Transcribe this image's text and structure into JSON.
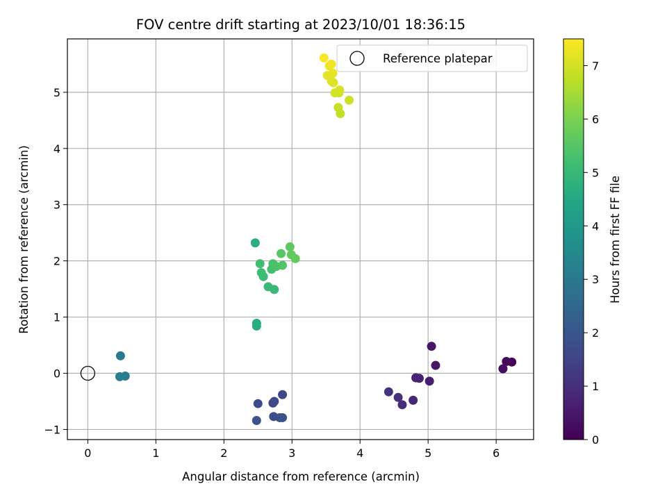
{
  "chart_data": {
    "type": "scatter",
    "title": "FOV centre drift starting at 2023/10/01 18:36:15",
    "xlabel": "Angular distance from reference (arcmin)",
    "ylabel": "Rotation from reference (arcmin)",
    "xlim": [
      -0.3,
      6.55
    ],
    "ylim": [
      -1.18,
      5.95
    ],
    "xticks": [
      0,
      1,
      2,
      3,
      4,
      5,
      6
    ],
    "yticks": [
      -1,
      0,
      1,
      2,
      3,
      4,
      5
    ],
    "grid": true,
    "legend": {
      "position": "top-right",
      "entries": [
        "Reference platepar"
      ]
    },
    "reference_point": {
      "x": 0,
      "y": 0
    },
    "colorbar": {
      "label": "Hours from first FF file",
      "colormap": "viridis",
      "range": [
        0,
        7.5
      ],
      "ticks": [
        0,
        1,
        2,
        3,
        4,
        5,
        6,
        7
      ]
    },
    "points": [
      {
        "x": 6.23,
        "y": 0.2,
        "c": 0.05
      },
      {
        "x": 6.15,
        "y": 0.21,
        "c": 0.15
      },
      {
        "x": 6.1,
        "y": 0.08,
        "c": 0.25
      },
      {
        "x": 5.05,
        "y": 0.48,
        "c": 0.45
      },
      {
        "x": 5.11,
        "y": 0.14,
        "c": 0.5
      },
      {
        "x": 5.02,
        "y": -0.14,
        "c": 0.6
      },
      {
        "x": 4.87,
        "y": -0.09,
        "c": 0.7
      },
      {
        "x": 4.82,
        "y": -0.08,
        "c": 0.75
      },
      {
        "x": 4.78,
        "y": -0.48,
        "c": 0.85
      },
      {
        "x": 4.62,
        "y": -0.56,
        "c": 0.95
      },
      {
        "x": 4.56,
        "y": -0.43,
        "c": 1.0
      },
      {
        "x": 4.42,
        "y": -0.33,
        "c": 1.1
      },
      {
        "x": 2.86,
        "y": -0.38,
        "c": 1.55
      },
      {
        "x": 2.74,
        "y": -0.5,
        "c": 1.6
      },
      {
        "x": 2.72,
        "y": -0.53,
        "c": 1.65
      },
      {
        "x": 2.5,
        "y": -0.54,
        "c": 1.7
      },
      {
        "x": 2.73,
        "y": -0.77,
        "c": 1.75
      },
      {
        "x": 2.82,
        "y": -0.79,
        "c": 1.8
      },
      {
        "x": 2.86,
        "y": -0.79,
        "c": 1.85
      },
      {
        "x": 2.48,
        "y": -0.84,
        "c": 1.9
      },
      {
        "x": 0.48,
        "y": 0.31,
        "c": 3.0
      },
      {
        "x": 0.55,
        "y": -0.05,
        "c": 3.1
      },
      {
        "x": 0.47,
        "y": -0.06,
        "c": 3.2
      },
      {
        "x": 2.48,
        "y": 0.89,
        "c": 4.6
      },
      {
        "x": 2.48,
        "y": 0.84,
        "c": 4.65
      },
      {
        "x": 2.46,
        "y": 2.32,
        "c": 4.7
      },
      {
        "x": 2.74,
        "y": 1.49,
        "c": 5.0
      },
      {
        "x": 2.65,
        "y": 1.54,
        "c": 5.05
      },
      {
        "x": 2.58,
        "y": 1.72,
        "c": 5.1
      },
      {
        "x": 2.55,
        "y": 1.79,
        "c": 5.15
      },
      {
        "x": 2.53,
        "y": 1.95,
        "c": 5.2
      },
      {
        "x": 2.7,
        "y": 1.85,
        "c": 5.25
      },
      {
        "x": 2.72,
        "y": 1.95,
        "c": 5.3
      },
      {
        "x": 2.77,
        "y": 1.9,
        "c": 5.35
      },
      {
        "x": 2.86,
        "y": 1.92,
        "c": 5.45
      },
      {
        "x": 2.84,
        "y": 2.13,
        "c": 5.5
      },
      {
        "x": 2.97,
        "y": 2.25,
        "c": 5.6
      },
      {
        "x": 2.99,
        "y": 2.11,
        "c": 5.65
      },
      {
        "x": 3.05,
        "y": 2.04,
        "c": 5.7
      },
      {
        "x": 3.71,
        "y": 4.62,
        "c": 6.8
      },
      {
        "x": 3.68,
        "y": 4.73,
        "c": 6.85
      },
      {
        "x": 3.84,
        "y": 4.86,
        "c": 6.9
      },
      {
        "x": 3.69,
        "y": 4.99,
        "c": 6.95
      },
      {
        "x": 3.63,
        "y": 4.99,
        "c": 7.0
      },
      {
        "x": 3.7,
        "y": 5.04,
        "c": 7.05
      },
      {
        "x": 3.58,
        "y": 5.2,
        "c": 7.1
      },
      {
        "x": 3.61,
        "y": 5.17,
        "c": 7.15
      },
      {
        "x": 3.52,
        "y": 5.3,
        "c": 7.2
      },
      {
        "x": 3.6,
        "y": 5.34,
        "c": 7.25
      },
      {
        "x": 3.55,
        "y": 5.47,
        "c": 7.3
      },
      {
        "x": 3.58,
        "y": 5.5,
        "c": 7.35
      },
      {
        "x": 3.47,
        "y": 5.61,
        "c": 7.45
      }
    ]
  }
}
